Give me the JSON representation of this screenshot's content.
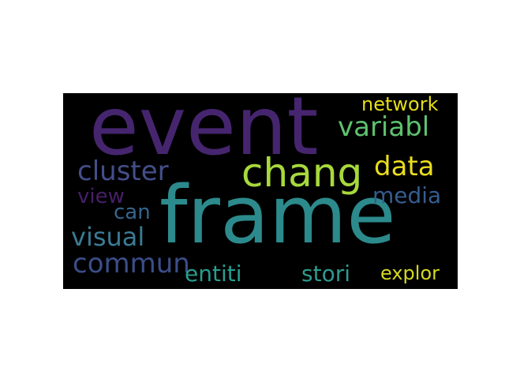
{
  "words": [
    {
      "text": "event",
      "color": "#46256f"
    },
    {
      "text": "frame",
      "color": "#2c8a8c"
    },
    {
      "text": "chang",
      "color": "#a7d93c"
    },
    {
      "text": "cluster",
      "color": "#444e8a"
    },
    {
      "text": "data",
      "color": "#eadd1e"
    },
    {
      "text": "variabl",
      "color": "#5ec26f"
    },
    {
      "text": "network",
      "color": "#e6dd1a"
    },
    {
      "text": "view",
      "color": "#471e67"
    },
    {
      "text": "can",
      "color": "#35668e"
    },
    {
      "text": "media",
      "color": "#355d8f"
    },
    {
      "text": "visual",
      "color": "#3a7b94"
    },
    {
      "text": "commun",
      "color": "#3b4e89"
    },
    {
      "text": "entiti",
      "color": "#269f90"
    },
    {
      "text": "stori",
      "color": "#2e9b8e"
    },
    {
      "text": "explor",
      "color": "#d5d920"
    }
  ]
}
